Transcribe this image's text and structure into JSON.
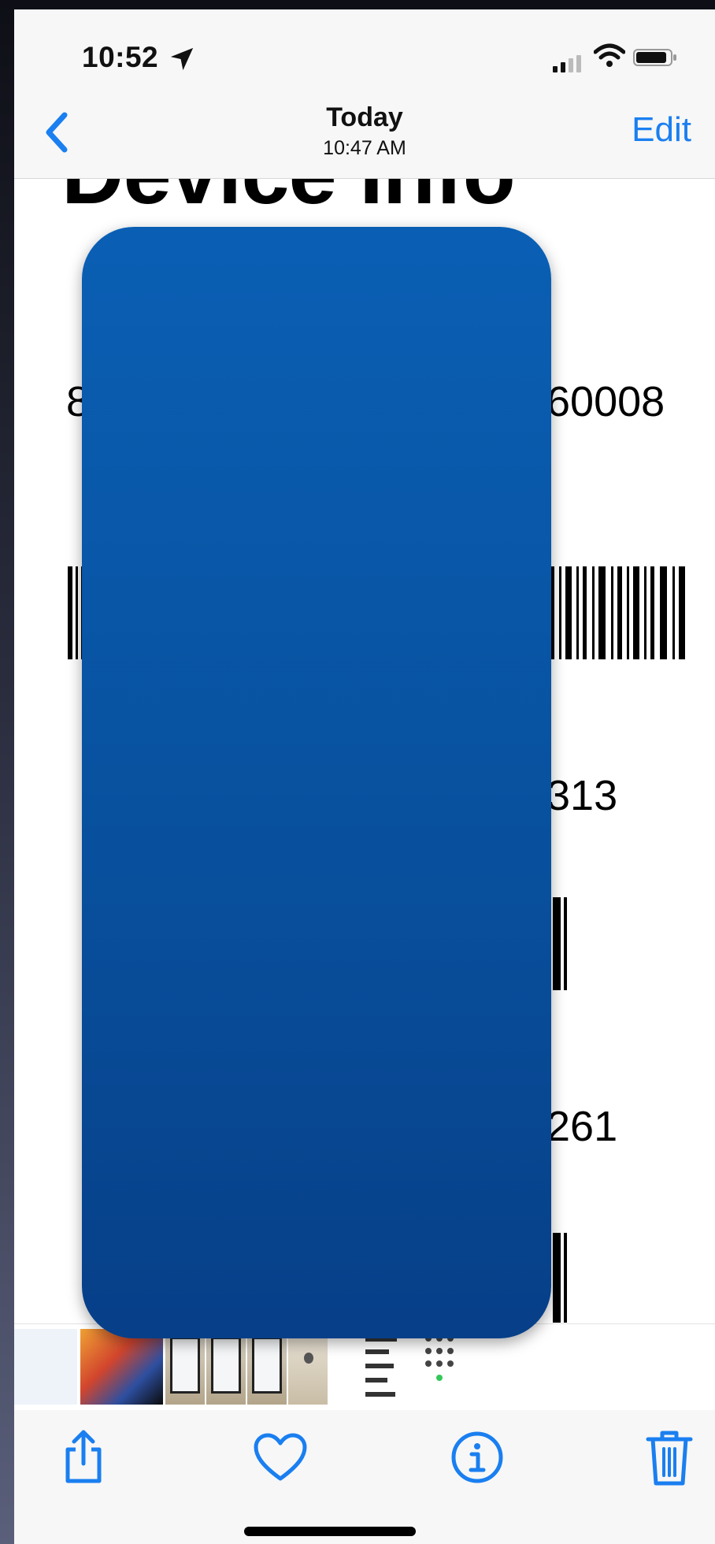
{
  "status_bar": {
    "time": "10:52"
  },
  "nav": {
    "title": "Today",
    "subtitle": "10:47 AM",
    "edit_label": "Edit"
  },
  "photo": {
    "heading": "Device Info",
    "line1_left": "8",
    "line1_right": "60008",
    "line2_right": "313",
    "line3_right": "261"
  },
  "toolbar": {
    "share": "share-icon",
    "favorite": "heart-icon",
    "info": "info-icon",
    "delete": "trash-icon"
  },
  "colors": {
    "accent": "#1a7ff0",
    "redaction": "#0a5fb4"
  }
}
